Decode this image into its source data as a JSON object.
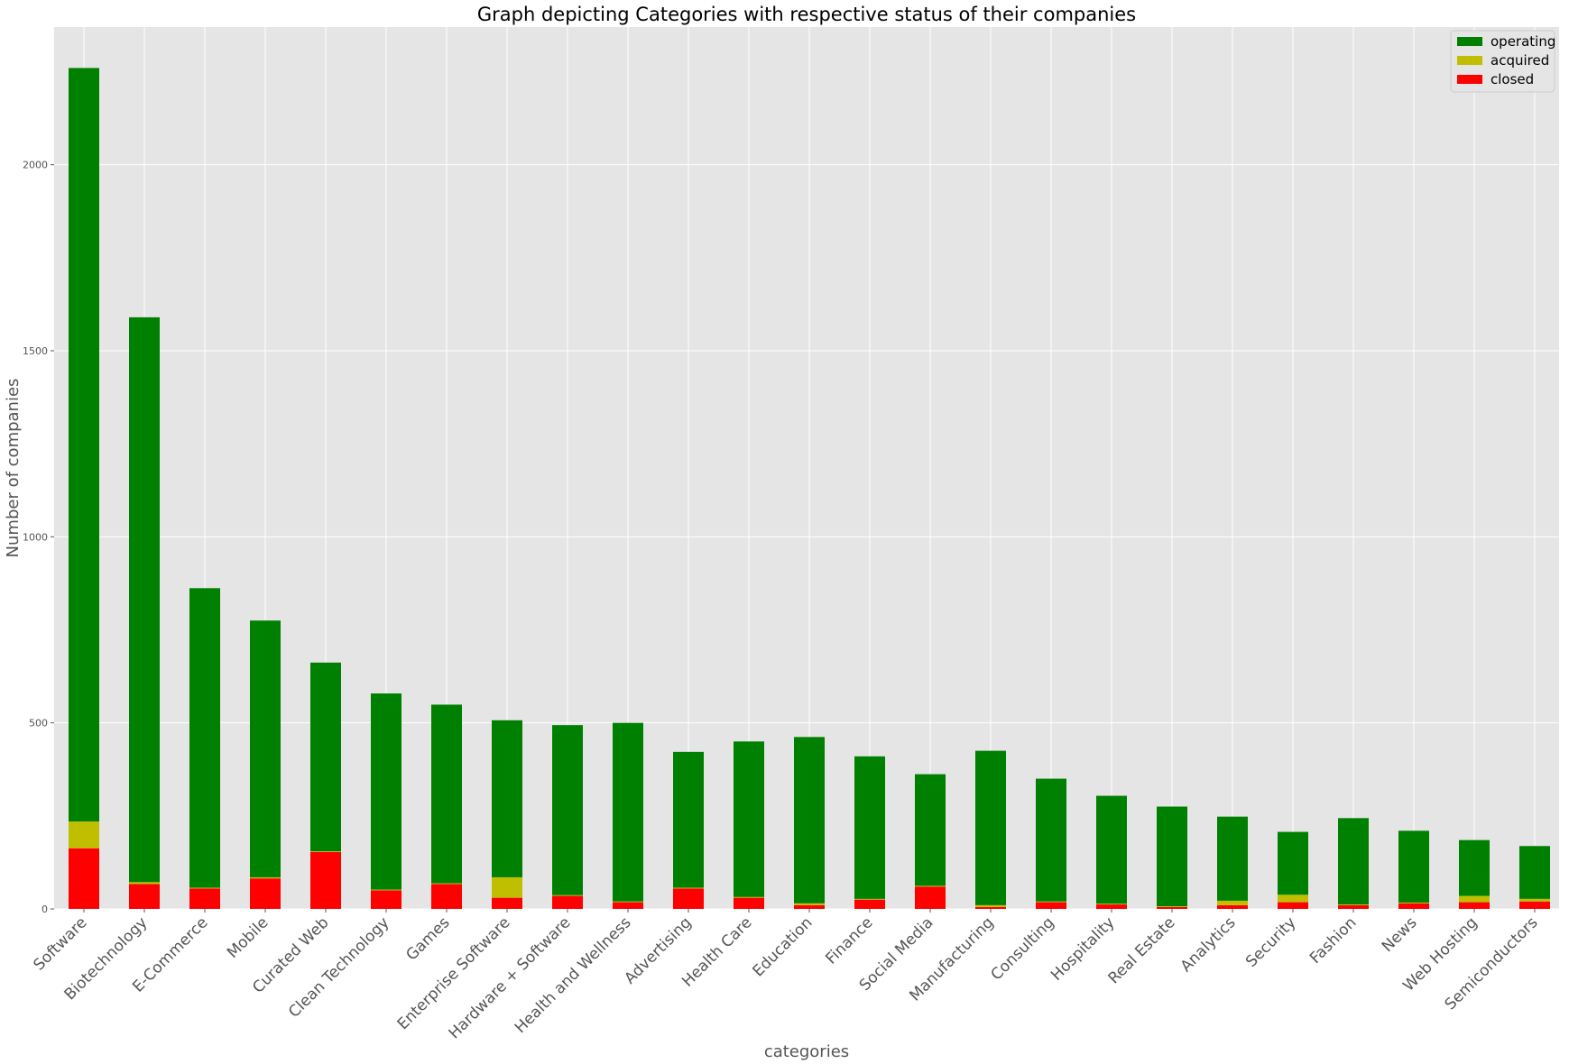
{
  "chart_data": {
    "type": "bar",
    "stacked": true,
    "title": "Graph depicting Categories with respective status of their companies",
    "xlabel": "categories",
    "ylabel": "Number of companies",
    "ylim": [
      0,
      2370
    ],
    "yticks": [
      0,
      500,
      1000,
      1500,
      2000
    ],
    "grid": true,
    "legend_position": "top-right",
    "categories": [
      "Software",
      "Biotechnology",
      "E-Commerce",
      "Mobile",
      "Curated Web",
      "Clean Technology",
      "Games",
      "Enterprise Software",
      "Hardware + Software",
      "Health and Wellness",
      "Advertising",
      "Health Care",
      "Education",
      "Finance",
      "Social Media",
      "Manufacturing",
      "Consulting",
      "Hospitality",
      "Real Estate",
      "Analytics",
      "Security",
      "Fashion",
      "News",
      "Web Hosting",
      "Semiconductors"
    ],
    "series": [
      {
        "name": "closed",
        "color": "#ff0000",
        "values": [
          163,
          67,
          55,
          82,
          153,
          50,
          67,
          30,
          35,
          18,
          55,
          30,
          10,
          25,
          60,
          5,
          18,
          12,
          5,
          10,
          18,
          10,
          15,
          18,
          20
        ]
      },
      {
        "name": "acquired",
        "color": "#bfbf00",
        "values": [
          72,
          5,
          2,
          3,
          2,
          2,
          2,
          55,
          2,
          2,
          2,
          2,
          5,
          2,
          2,
          5,
          2,
          2,
          2,
          12,
          20,
          2,
          2,
          17,
          7
        ]
      },
      {
        "name": "operating",
        "color": "#008000",
        "values": [
          2025,
          1518,
          805,
          690,
          507,
          527,
          480,
          422,
          457,
          480,
          365,
          418,
          447,
          383,
          300,
          415,
          330,
          290,
          268,
          226,
          169,
          232,
          193,
          150,
          142
        ]
      }
    ],
    "legend_order": [
      "operating",
      "acquired",
      "closed"
    ]
  }
}
